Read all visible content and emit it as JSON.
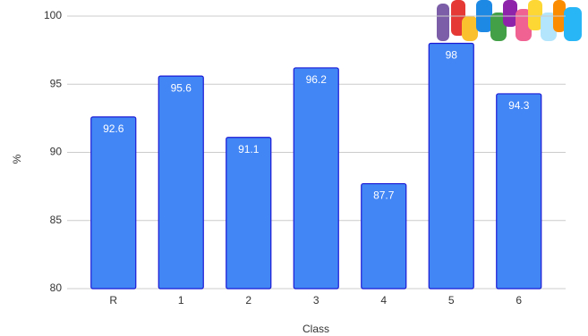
{
  "chart_data": {
    "type": "bar",
    "categories": [
      "R",
      "1",
      "2",
      "3",
      "4",
      "5",
      "6"
    ],
    "values": [
      92.6,
      95.6,
      91.1,
      96.2,
      87.7,
      98,
      94.3
    ],
    "color": "#4285f4",
    "x_label": "Class",
    "y_label": "%",
    "ylim": [
      80,
      100
    ],
    "yticks": [
      80,
      85,
      90,
      95,
      100
    ],
    "grid": true
  }
}
